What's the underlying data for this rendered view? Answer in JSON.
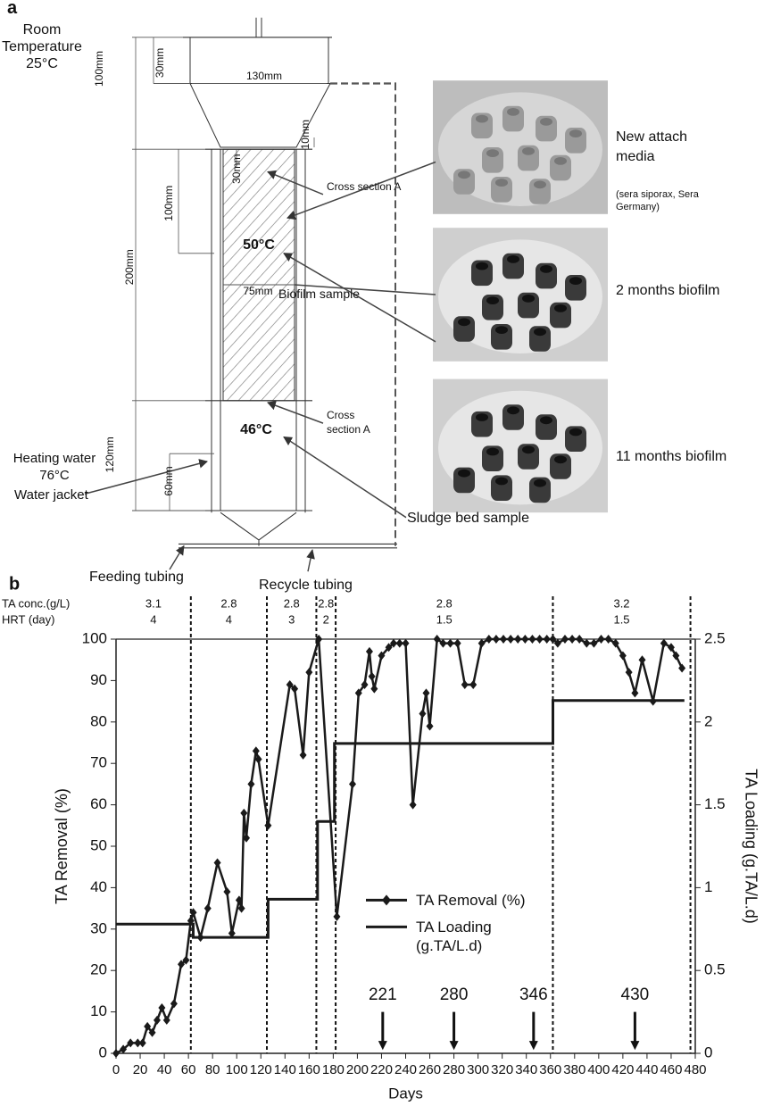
{
  "diagram": {
    "label": "a",
    "room_temperature": "Room Temperature 25°C",
    "dimensions": [
      "100mm",
      "30mm",
      "130mm",
      "10mm",
      "30mm",
      "100mm",
      "200mm",
      "75mm",
      "120mm",
      "60mm"
    ],
    "zone_temperatures": [
      "50°C",
      "46°C"
    ],
    "cross_sections": [
      "Cross section A",
      "Cross section A"
    ],
    "biofilm_sample": "Biofilm sample",
    "heating_water": "Heating water 76°C",
    "water_jacket": "Water jacket",
    "sludge_bed_sample": "Sludge bed sample",
    "feeding_tubing": "Feeding tubing",
    "recycle_tubing": "Recycle tubing",
    "media": [
      {
        "label": "New attach media",
        "note": "(sera siporax, Sera Germany)"
      },
      {
        "label": "2 months biofilm"
      },
      {
        "label": "11 months biofilm"
      }
    ]
  },
  "chart_data": {
    "type": "line",
    "label": "b",
    "xlabel": "Days",
    "ylabel": "TA Removal (%)",
    "y2label": "TA Loading (g.TA/L.d)",
    "xlim": [
      0,
      480
    ],
    "xticks": [
      0,
      20,
      40,
      60,
      80,
      100,
      120,
      140,
      160,
      180,
      200,
      220,
      240,
      260,
      280,
      300,
      320,
      340,
      360,
      380,
      400,
      420,
      440,
      460,
      480
    ],
    "ylim": [
      0,
      100
    ],
    "yticks": [
      0,
      10,
      20,
      30,
      40,
      50,
      60,
      70,
      80,
      90,
      100
    ],
    "y2lim": [
      0,
      2.5
    ],
    "y2ticks": [
      0,
      0.5,
      1,
      1.5,
      2,
      2.5
    ],
    "legend": "center",
    "series": [
      {
        "name": "TA Removal (%)",
        "color": "#1a1a1a",
        "marker": "diamond",
        "x": [
          0,
          6,
          12,
          18,
          22,
          26,
          30,
          34,
          38,
          42,
          48,
          54,
          58,
          62,
          64,
          70,
          76,
          84,
          92,
          96,
          102,
          104,
          106,
          108,
          112,
          116,
          118,
          126,
          144,
          148,
          155,
          160,
          168,
          183,
          196,
          201,
          206,
          210,
          212,
          214,
          220,
          226,
          230,
          235,
          240,
          246,
          254,
          257,
          260,
          266,
          271,
          277,
          283,
          289,
          296,
          303,
          309,
          315,
          321,
          327,
          333,
          339,
          345,
          351,
          357,
          362,
          366,
          372,
          378,
          384,
          390,
          396,
          402,
          408,
          414,
          420,
          425,
          430,
          436,
          445,
          454,
          460,
          464,
          469
        ],
        "values": [
          0,
          1,
          2.5,
          2.5,
          2.5,
          6.5,
          5,
          8,
          11,
          8,
          12,
          21.5,
          22.5,
          32,
          34,
          28,
          35,
          46,
          39,
          29,
          37,
          35,
          58,
          52,
          65,
          73,
          71,
          55,
          89,
          88,
          72,
          92,
          100,
          33,
          65,
          87,
          89,
          97,
          91,
          88,
          96,
          98,
          99,
          99,
          99,
          60,
          82,
          87,
          79,
          100,
          99,
          99,
          99,
          89,
          89,
          99,
          100,
          100,
          100,
          100,
          100,
          100,
          100,
          100,
          100,
          100,
          99,
          100,
          100,
          100,
          99,
          99,
          100,
          100,
          99,
          96,
          92,
          87,
          95,
          85,
          99,
          98,
          96,
          93
        ]
      },
      {
        "name": "TA Loading (g.TA/L.d)",
        "color": "#1a1a1a",
        "axis": "y2",
        "x": [
          0,
          64,
          64,
          126,
          126,
          167,
          167,
          181,
          181,
          362,
          362,
          471
        ],
        "values": [
          0.78,
          0.78,
          0.7,
          0.7,
          0.93,
          0.93,
          1.4,
          1.4,
          1.87,
          1.87,
          2.13,
          2.13
        ]
      }
    ],
    "phase_rows": [
      "TA conc.(g/L)",
      "HRT (day)"
    ],
    "phase_boundaries": [
      62,
      125,
      166,
      182,
      362,
      476
    ],
    "phases": [
      {
        "conc": 3.1,
        "hrt": 4
      },
      {
        "conc": 2.8,
        "hrt": 4
      },
      {
        "conc": 2.8,
        "hrt": 3
      },
      {
        "conc": 2.8,
        "hrt": 2
      },
      {
        "conc": 2.8,
        "hrt": 1.5
      },
      {
        "conc": 3.2,
        "hrt": 1.5
      }
    ],
    "sample_days": [
      221,
      280,
      346,
      430
    ]
  }
}
